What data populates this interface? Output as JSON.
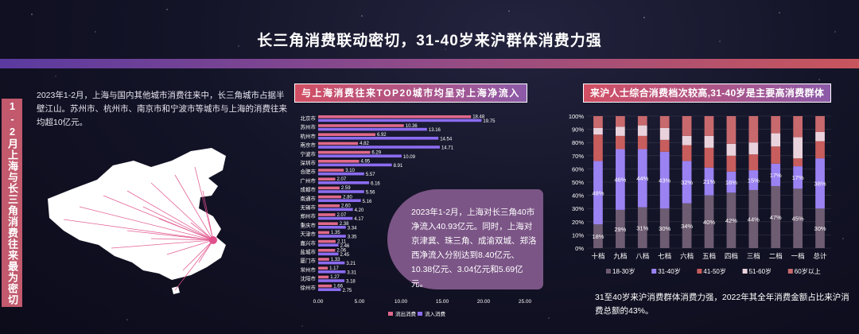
{
  "title": "长三角消费联动密切，31-40岁来沪群体消费力强",
  "side_label": "1-2月上海与长三角消费往来最为密切",
  "intro_text": "2023年1-2月，上海与国内其他城市消费往来中，长三角城市占据半壁江山。苏州市、杭州市、南京市和宁波市等城市与上海的消费往来均超10亿元。",
  "callout_text": "2023年1-2月，上海对长三角40市净流入40.93亿元。同时，上海对京津冀、珠三角、成渝双城、郑洛西净流入分别达到8.40亿元、10.38亿元、3.04亿元和5.69亿元。",
  "footnote_text": "31至40岁来沪消费群体消费力强，2022年其全年消费金额占比来沪消费总额的43%。",
  "colors": {
    "outflow": "#e0698a",
    "inflow": "#8b6cf0",
    "age_18_30": "#6e5c72",
    "age_31_40": "#9a82f2",
    "age_41_50": "#c75d5c",
    "age_51_60": "#ead2dc",
    "age_60_plus": "#c8696d",
    "map_fill": "#ffffff",
    "map_lines": "#e0508a"
  },
  "chart_data": [
    {
      "type": "bar",
      "orientation": "horizontal",
      "title": "与上海消费往来TOP20城市均呈对上海净流入",
      "categories": [
        "北京市",
        "苏州市",
        "杭州市",
        "南京市",
        "宁波市",
        "深圳市",
        "合肥市",
        "广州市",
        "成都市",
        "南通市",
        "无锡市",
        "郑州市",
        "重庆市",
        "天津市",
        "嘉兴市",
        "盐城市",
        "厦门市",
        "常州市",
        "沈阳市",
        "徐州市"
      ],
      "series": [
        {
          "name": "流出消费",
          "values": [
            18.48,
            10.36,
            6.92,
            4.82,
            6.29,
            4.95,
            3.1,
            2.07,
            2.59,
            2.8,
            2.6,
            2.07,
            2.38,
            1.35,
            2.11,
            2.06,
            1.33,
            1.17,
            1.27,
            1.66
          ]
        },
        {
          "name": "流入消费",
          "values": [
            19.75,
            13.16,
            14.54,
            14.71,
            10.09,
            8.91,
            5.57,
            6.16,
            5.56,
            5.16,
            4.2,
            4.17,
            3.34,
            3.35,
            2.46,
            2.45,
            3.21,
            3.31,
            3.18,
            2.75
          ]
        }
      ],
      "xlim": [
        0,
        25
      ],
      "xticks": [
        "0.00",
        "5.00",
        "10.00",
        "15.00",
        "20.00",
        "25.00"
      ],
      "legend": "bottom"
    },
    {
      "type": "bar",
      "stacked": true,
      "title": "来沪人士综合消费档次较高,31-40岁是主要高消费群体",
      "categories": [
        "十档",
        "九档",
        "八档",
        "七档",
        "六档",
        "五档",
        "四档",
        "三档",
        "二档",
        "一档",
        "总计"
      ],
      "series": [
        {
          "name": "18-30岁",
          "values": [
            18,
            29,
            31,
            30,
            34,
            40,
            42,
            44,
            47,
            45,
            30
          ]
        },
        {
          "name": "31-40岁",
          "values": [
            48,
            46,
            44,
            43,
            32,
            21,
            16,
            15,
            17,
            17,
            38
          ]
        },
        {
          "name": "41-50岁",
          "values": [
            20,
            10,
            10,
            9,
            12,
            15,
            12,
            12,
            13,
            6,
            13
          ]
        },
        {
          "name": "51-60岁",
          "values": [
            5,
            7,
            8,
            9,
            7,
            9,
            9,
            9,
            10,
            16,
            7
          ]
        },
        {
          "name": "60岁以上",
          "values": [
            9,
            8,
            7,
            9,
            15,
            15,
            21,
            20,
            13,
            16,
            12
          ]
        }
      ],
      "labels_shown": {
        "18-30岁": [
          "18%",
          "29%",
          "31%",
          "30%",
          "34%",
          "40%",
          "42%",
          "44%",
          "47%",
          "45%",
          "30%"
        ],
        "31-40岁": [
          "48%",
          "46%",
          "44%",
          "43%",
          "32%",
          "21%",
          "16%",
          "15%",
          "17%",
          "17%",
          "38%"
        ]
      },
      "ylim": [
        0,
        100
      ],
      "yticks": [
        "0%",
        "10%",
        "20%",
        "30%",
        "40%",
        "50%",
        "60%",
        "70%",
        "80%",
        "90%",
        "100%"
      ],
      "legend": "bottom"
    }
  ]
}
